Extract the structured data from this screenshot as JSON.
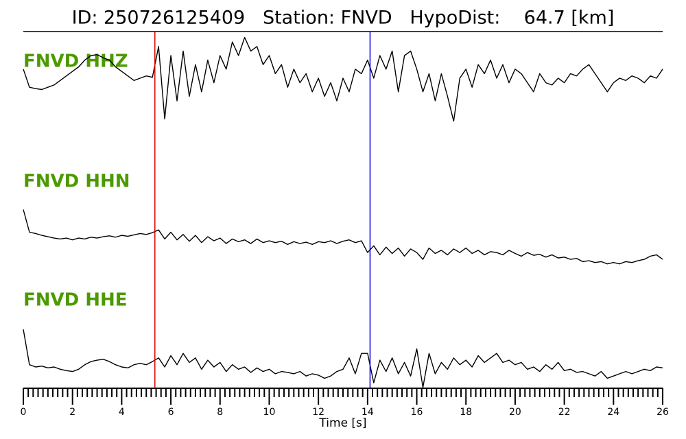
{
  "chart_data": {
    "type": "seismogram",
    "title": "ID: 250726125409   Station: FNVD   HypoDist:    64.7 [km]",
    "x_label": "Time [s]",
    "xlim": [
      0,
      26
    ],
    "xticks": [
      0,
      2,
      4,
      6,
      8,
      10,
      12,
      14,
      16,
      18,
      20,
      22,
      24,
      26
    ],
    "ylim": [
      -1,
      1
    ],
    "picks": [
      {
        "x": 5.35,
        "color": "#e00000"
      },
      {
        "x": 14.1,
        "color": "#0000e0"
      }
    ],
    "x": [
      0,
      0.25,
      0.5,
      0.75,
      1,
      1.25,
      1.5,
      1.75,
      2,
      2.25,
      2.5,
      2.75,
      3,
      3.25,
      3.5,
      3.75,
      4,
      4.25,
      4.5,
      4.75,
      5,
      5.25,
      5.5,
      5.75,
      6,
      6.25,
      6.5,
      6.75,
      7,
      7.25,
      7.5,
      7.75,
      8,
      8.25,
      8.5,
      8.75,
      9,
      9.25,
      9.5,
      9.75,
      10,
      10.25,
      10.5,
      10.75,
      11,
      11.25,
      11.5,
      11.75,
      12,
      12.25,
      12.5,
      12.75,
      13,
      13.25,
      13.5,
      13.75,
      14,
      14.25,
      14.5,
      14.75,
      15,
      15.25,
      15.5,
      15.75,
      16,
      16.25,
      16.5,
      16.75,
      17,
      17.25,
      17.5,
      17.75,
      18,
      18.25,
      18.5,
      18.75,
      19,
      19.25,
      19.5,
      19.75,
      20,
      20.25,
      20.5,
      20.75,
      21,
      21.25,
      21.5,
      21.75,
      22,
      22.25,
      22.5,
      22.75,
      23,
      23.25,
      23.5,
      23.75,
      24,
      24.25,
      24.5,
      24.75,
      25,
      25.25,
      25.5,
      25.75,
      26
    ],
    "series": [
      {
        "name": "FNVD HHZ",
        "color": "#000000",
        "values": [
          0.2,
          -0.2,
          -0.23,
          -0.25,
          -0.2,
          -0.15,
          -0.05,
          0.05,
          0.15,
          0.25,
          0.4,
          0.5,
          0.52,
          0.45,
          0.4,
          0.25,
          0.15,
          0.05,
          -0.05,
          0,
          0.05,
          0.02,
          0.7,
          -0.9,
          0.5,
          -0.5,
          0.6,
          -0.4,
          0.3,
          -0.3,
          0.4,
          -0.1,
          0.5,
          0.2,
          0.8,
          0.5,
          0.9,
          0.6,
          0.7,
          0.3,
          0.5,
          0.1,
          0.3,
          -0.2,
          0.2,
          -0.1,
          0.1,
          -0.3,
          0,
          -0.4,
          -0.1,
          -0.5,
          0,
          -0.3,
          0.2,
          0.1,
          0.4,
          0,
          0.5,
          0.2,
          0.6,
          -0.3,
          0.5,
          0.6,
          0.2,
          -0.3,
          0.1,
          -0.5,
          0.1,
          -0.4,
          -0.95,
          0,
          0.2,
          -0.2,
          0.3,
          0.1,
          0.4,
          0,
          0.3,
          -0.1,
          0.2,
          0.1,
          -0.1,
          -0.3,
          0.1,
          -0.1,
          -0.15,
          0,
          -0.1,
          0.1,
          0.05,
          0.2,
          0.3,
          0.1,
          -0.1,
          -0.3,
          -0.1,
          0,
          -0.05,
          0.05,
          0,
          -0.1,
          0.05,
          0,
          0.2
        ]
      },
      {
        "name": "FNVD HHN",
        "color": "#000000",
        "values": [
          0.75,
          0.25,
          0.22,
          0.18,
          0.15,
          0.12,
          0.1,
          0.12,
          0.08,
          0.12,
          0.1,
          0.14,
          0.12,
          0.15,
          0.17,
          0.14,
          0.18,
          0.16,
          0.19,
          0.22,
          0.2,
          0.24,
          0.3,
          0.1,
          0.25,
          0.08,
          0.2,
          0.05,
          0.18,
          0.02,
          0.15,
          0.06,
          0.12,
          0,
          0.1,
          0.04,
          0.08,
          0,
          0.1,
          0.02,
          0.06,
          0.02,
          0.05,
          -0.02,
          0.04,
          0,
          0.03,
          -0.02,
          0.04,
          0.02,
          0.06,
          0,
          0.05,
          0.08,
          0.02,
          0.06,
          -0.2,
          -0.05,
          -0.25,
          -0.08,
          -0.22,
          -0.1,
          -0.28,
          -0.12,
          -0.2,
          -0.35,
          -0.1,
          -0.22,
          -0.15,
          -0.25,
          -0.12,
          -0.2,
          -0.1,
          -0.22,
          -0.15,
          -0.25,
          -0.18,
          -0.2,
          -0.25,
          -0.15,
          -0.22,
          -0.28,
          -0.2,
          -0.26,
          -0.24,
          -0.3,
          -0.25,
          -0.32,
          -0.3,
          -0.35,
          -0.33,
          -0.4,
          -0.38,
          -0.42,
          -0.4,
          -0.45,
          -0.42,
          -0.45,
          -0.4,
          -0.42,
          -0.38,
          -0.35,
          -0.28,
          -0.25,
          -0.35
        ]
      },
      {
        "name": "FNVD HHE",
        "color": "#000000",
        "values": [
          0.83,
          0.05,
          0,
          0.02,
          -0.02,
          0,
          -0.05,
          -0.08,
          -0.1,
          -0.05,
          0.05,
          0.12,
          0.15,
          0.17,
          0.12,
          0.05,
          0,
          -0.02,
          0.05,
          0.08,
          0.05,
          0.12,
          0.2,
          0,
          0.25,
          0.05,
          0.3,
          0.1,
          0.2,
          -0.05,
          0.15,
          0,
          0.1,
          -0.1,
          0.05,
          -0.05,
          0,
          -0.12,
          -0.02,
          -0.1,
          -0.05,
          -0.15,
          -0.1,
          -0.12,
          -0.15,
          -0.1,
          -0.2,
          -0.15,
          -0.18,
          -0.25,
          -0.2,
          -0.1,
          -0.05,
          0.2,
          -0.15,
          0.3,
          0.3,
          -0.35,
          0.15,
          -0.1,
          0.2,
          -0.15,
          0.1,
          -0.2,
          0.4,
          -0.45,
          0.3,
          -0.15,
          0.1,
          -0.05,
          0.2,
          0.05,
          0.15,
          0,
          0.25,
          0.1,
          0.2,
          0.3,
          0.1,
          0.15,
          0.05,
          0.1,
          -0.05,
          0,
          -0.1,
          0.05,
          -0.05,
          0.1,
          -0.08,
          -0.05,
          -0.12,
          -0.1,
          -0.15,
          -0.2,
          -0.1,
          -0.25,
          -0.2,
          -0.15,
          -0.1,
          -0.15,
          -0.1,
          -0.05,
          -0.08,
          0,
          -0.02
        ]
      }
    ]
  }
}
